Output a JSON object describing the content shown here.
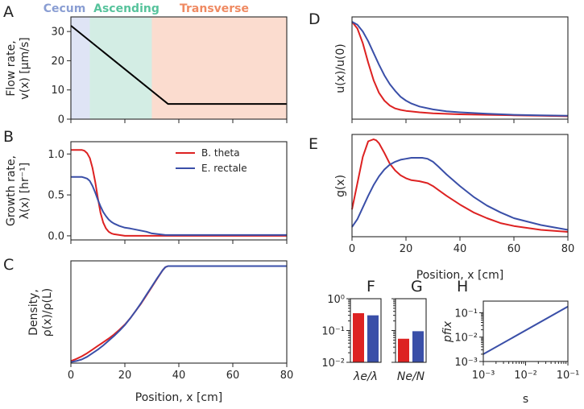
{
  "colors": {
    "red": "#dd2222",
    "blue": "#3a4fa8",
    "black": "#000000",
    "cecum_fill": "#dfe4f5",
    "ascending_fill": "#d3ede4",
    "transverse_fill": "#fbdccf",
    "cecum_text": "#8a9ed3",
    "ascending_text": "#57c39c",
    "transverse_text": "#ef8a62"
  },
  "panels": {
    "A": "A",
    "B": "B",
    "C": "C",
    "D": "D",
    "E": "E",
    "F": "F",
    "G": "G",
    "H": "H"
  },
  "chart_data": [
    {
      "id": "A",
      "type": "line",
      "regions": [
        {
          "name": "Cecum",
          "x0": 0,
          "x1": 7
        },
        {
          "name": "Ascending",
          "x0": 7,
          "x1": 30
        },
        {
          "name": "Transverse",
          "x0": 30,
          "x1": 80
        }
      ],
      "series": [
        {
          "name": "flow",
          "x": [
            0,
            36,
            80
          ],
          "y": [
            32,
            5.2,
            5.2
          ]
        }
      ],
      "ylabel_line1": "Flow rate,",
      "ylabel_line2": "v(x) [μm/s]",
      "xlim": [
        0,
        80
      ],
      "ylim": [
        0,
        35
      ],
      "yticks": [
        0,
        10,
        20,
        30
      ],
      "ytick_labels": [
        "0",
        "10",
        "20",
        "30"
      ],
      "xticks": [
        0,
        20,
        40,
        60,
        80
      ]
    },
    {
      "id": "B",
      "type": "line",
      "series": [
        {
          "name": "B. theta",
          "x": [
            0,
            2,
            4,
            5,
            6,
            7,
            8,
            9,
            10,
            11,
            12,
            13,
            14,
            15,
            16,
            18,
            20,
            25,
            30,
            40,
            60,
            80
          ],
          "y": [
            1.05,
            1.05,
            1.05,
            1.04,
            1.01,
            0.95,
            0.83,
            0.66,
            0.46,
            0.28,
            0.16,
            0.09,
            0.05,
            0.03,
            0.02,
            0.01,
            0.0,
            0.0,
            0.0,
            0.0,
            0.0,
            0.0
          ]
        },
        {
          "name": "E. rectale",
          "x": [
            0,
            2,
            4,
            5,
            6,
            7,
            8,
            9,
            10,
            11,
            12,
            13,
            14,
            15,
            16,
            18,
            20,
            22,
            25,
            28,
            30,
            35,
            40,
            60,
            80
          ],
          "y": [
            0.72,
            0.72,
            0.72,
            0.71,
            0.7,
            0.67,
            0.61,
            0.53,
            0.44,
            0.36,
            0.29,
            0.24,
            0.2,
            0.17,
            0.15,
            0.12,
            0.1,
            0.09,
            0.07,
            0.05,
            0.03,
            0.01,
            0.01,
            0.01,
            0.01
          ]
        }
      ],
      "ylabel_line1": "Growth rate,",
      "ylabel_line2": "λ(x) [hr⁻¹]",
      "xlim": [
        0,
        80
      ],
      "ylim": [
        -0.05,
        1.15
      ],
      "yticks": [
        0,
        0.5,
        1.0
      ],
      "ytick_labels": [
        "0.0",
        "0.5",
        "1.0"
      ],
      "xticks": [
        0,
        20,
        40,
        60,
        80
      ],
      "legend": [
        "B. theta",
        "E. rectale"
      ]
    },
    {
      "id": "C",
      "type": "line",
      "series": [
        {
          "name": "B. theta",
          "x": [
            0,
            2,
            4,
            6,
            8,
            10,
            12,
            14,
            16,
            18,
            20,
            22,
            24,
            26,
            28,
            30,
            32,
            34,
            35,
            36,
            80
          ],
          "y": [
            0.09,
            0.11,
            0.135,
            0.165,
            0.2,
            0.235,
            0.27,
            0.305,
            0.345,
            0.39,
            0.44,
            0.5,
            0.57,
            0.64,
            0.72,
            0.8,
            0.88,
            0.96,
            0.99,
            1.0,
            1.0
          ]
        },
        {
          "name": "E. rectale",
          "x": [
            0,
            2,
            4,
            6,
            8,
            10,
            12,
            14,
            16,
            18,
            20,
            22,
            24,
            26,
            28,
            30,
            32,
            34,
            35,
            36,
            80
          ],
          "y": [
            0.08,
            0.09,
            0.105,
            0.13,
            0.165,
            0.2,
            0.24,
            0.285,
            0.33,
            0.38,
            0.435,
            0.5,
            0.57,
            0.645,
            0.725,
            0.805,
            0.885,
            0.96,
            0.99,
            1.0,
            1.0
          ]
        }
      ],
      "ylabel_line1": "Density,",
      "ylabel_line2": "ρ(x)/ρ(L)",
      "xlabel": "Position, x [cm]",
      "xlim": [
        0,
        80
      ],
      "ylim": [
        0.07,
        1.05
      ],
      "xticks": [
        0,
        20,
        40,
        60,
        80
      ],
      "xtick_labels": [
        "0",
        "20",
        "40",
        "60",
        "80"
      ]
    },
    {
      "id": "D",
      "type": "line",
      "series": [
        {
          "name": "B. theta",
          "x": [
            0,
            2,
            4,
            6,
            8,
            10,
            12,
            14,
            16,
            18,
            20,
            25,
            30,
            40,
            50,
            60,
            70,
            80
          ],
          "y": [
            1.0,
            0.93,
            0.78,
            0.58,
            0.4,
            0.27,
            0.19,
            0.14,
            0.11,
            0.095,
            0.085,
            0.07,
            0.06,
            0.05,
            0.045,
            0.04,
            0.035,
            0.03
          ]
        },
        {
          "name": "E. rectale",
          "x": [
            0,
            2,
            4,
            6,
            8,
            10,
            12,
            14,
            16,
            18,
            20,
            22,
            25,
            30,
            35,
            40,
            50,
            60,
            70,
            80
          ],
          "y": [
            1.0,
            0.97,
            0.9,
            0.8,
            0.68,
            0.56,
            0.45,
            0.36,
            0.29,
            0.23,
            0.19,
            0.16,
            0.13,
            0.1,
            0.08,
            0.07,
            0.055,
            0.045,
            0.04,
            0.035
          ]
        }
      ],
      "ylabel": "u(x)/u(0)",
      "xlim": [
        0,
        80
      ],
      "ylim": [
        0,
        1.05
      ],
      "xticks": [
        0,
        20,
        40,
        60,
        80
      ]
    },
    {
      "id": "E",
      "type": "line",
      "series": [
        {
          "name": "B. theta",
          "x": [
            0,
            2,
            4,
            6,
            8,
            9,
            10,
            12,
            14,
            16,
            18,
            20,
            22,
            25,
            28,
            30,
            32,
            35,
            40,
            45,
            50,
            55,
            60,
            70,
            80
          ],
          "y": [
            0.28,
            0.55,
            0.82,
            0.98,
            1.0,
            0.99,
            0.96,
            0.86,
            0.75,
            0.68,
            0.63,
            0.6,
            0.58,
            0.57,
            0.55,
            0.52,
            0.48,
            0.42,
            0.33,
            0.25,
            0.19,
            0.14,
            0.11,
            0.07,
            0.05
          ]
        },
        {
          "name": "E. rectale",
          "x": [
            0,
            2,
            4,
            6,
            8,
            10,
            12,
            14,
            16,
            18,
            20,
            22,
            24,
            26,
            28,
            30,
            32,
            35,
            40,
            45,
            50,
            55,
            60,
            70,
            80
          ],
          "y": [
            0.1,
            0.18,
            0.3,
            0.42,
            0.53,
            0.62,
            0.69,
            0.74,
            0.77,
            0.79,
            0.8,
            0.81,
            0.81,
            0.81,
            0.8,
            0.77,
            0.72,
            0.64,
            0.52,
            0.41,
            0.32,
            0.25,
            0.19,
            0.12,
            0.07
          ]
        }
      ],
      "ylabel": "g(x)",
      "xlabel": "Position, x [cm]",
      "xlim": [
        0,
        80
      ],
      "ylim": [
        0,
        1.05
      ],
      "xticks": [
        0,
        20,
        40,
        60,
        80
      ],
      "xtick_labels": [
        "0",
        "20",
        "40",
        "60",
        "80"
      ]
    },
    {
      "id": "F",
      "type": "bar",
      "scale": "log",
      "categories": [
        "B. theta",
        "E. rectale"
      ],
      "values": [
        0.35,
        0.3
      ],
      "ylim": [
        0.01,
        1
      ],
      "ytick_labels": [
        "10⁻²",
        "10⁻¹",
        "10⁰"
      ],
      "xlabel": "λe/λ"
    },
    {
      "id": "G",
      "type": "bar",
      "scale": "log",
      "categories": [
        "B. theta",
        "E. rectale"
      ],
      "values": [
        0.055,
        0.095
      ],
      "ylim": [
        0.01,
        1
      ],
      "xlabel": "Ne/N"
    },
    {
      "id": "H",
      "type": "line",
      "scale": "log-log",
      "series": [
        {
          "name": "p_fix",
          "x": [
            0.001,
            0.1
          ],
          "y": [
            0.002,
            0.18
          ]
        }
      ],
      "xlim": [
        0.001,
        0.1
      ],
      "ylim": [
        0.001,
        0.3
      ],
      "xtick_labels": [
        "10⁻³",
        "10⁻²",
        "10⁻¹"
      ],
      "ytick_labels": [
        "10⁻³",
        "10⁻²",
        "10⁻¹"
      ],
      "xlabel": "s",
      "ylabel": "pfix"
    }
  ]
}
